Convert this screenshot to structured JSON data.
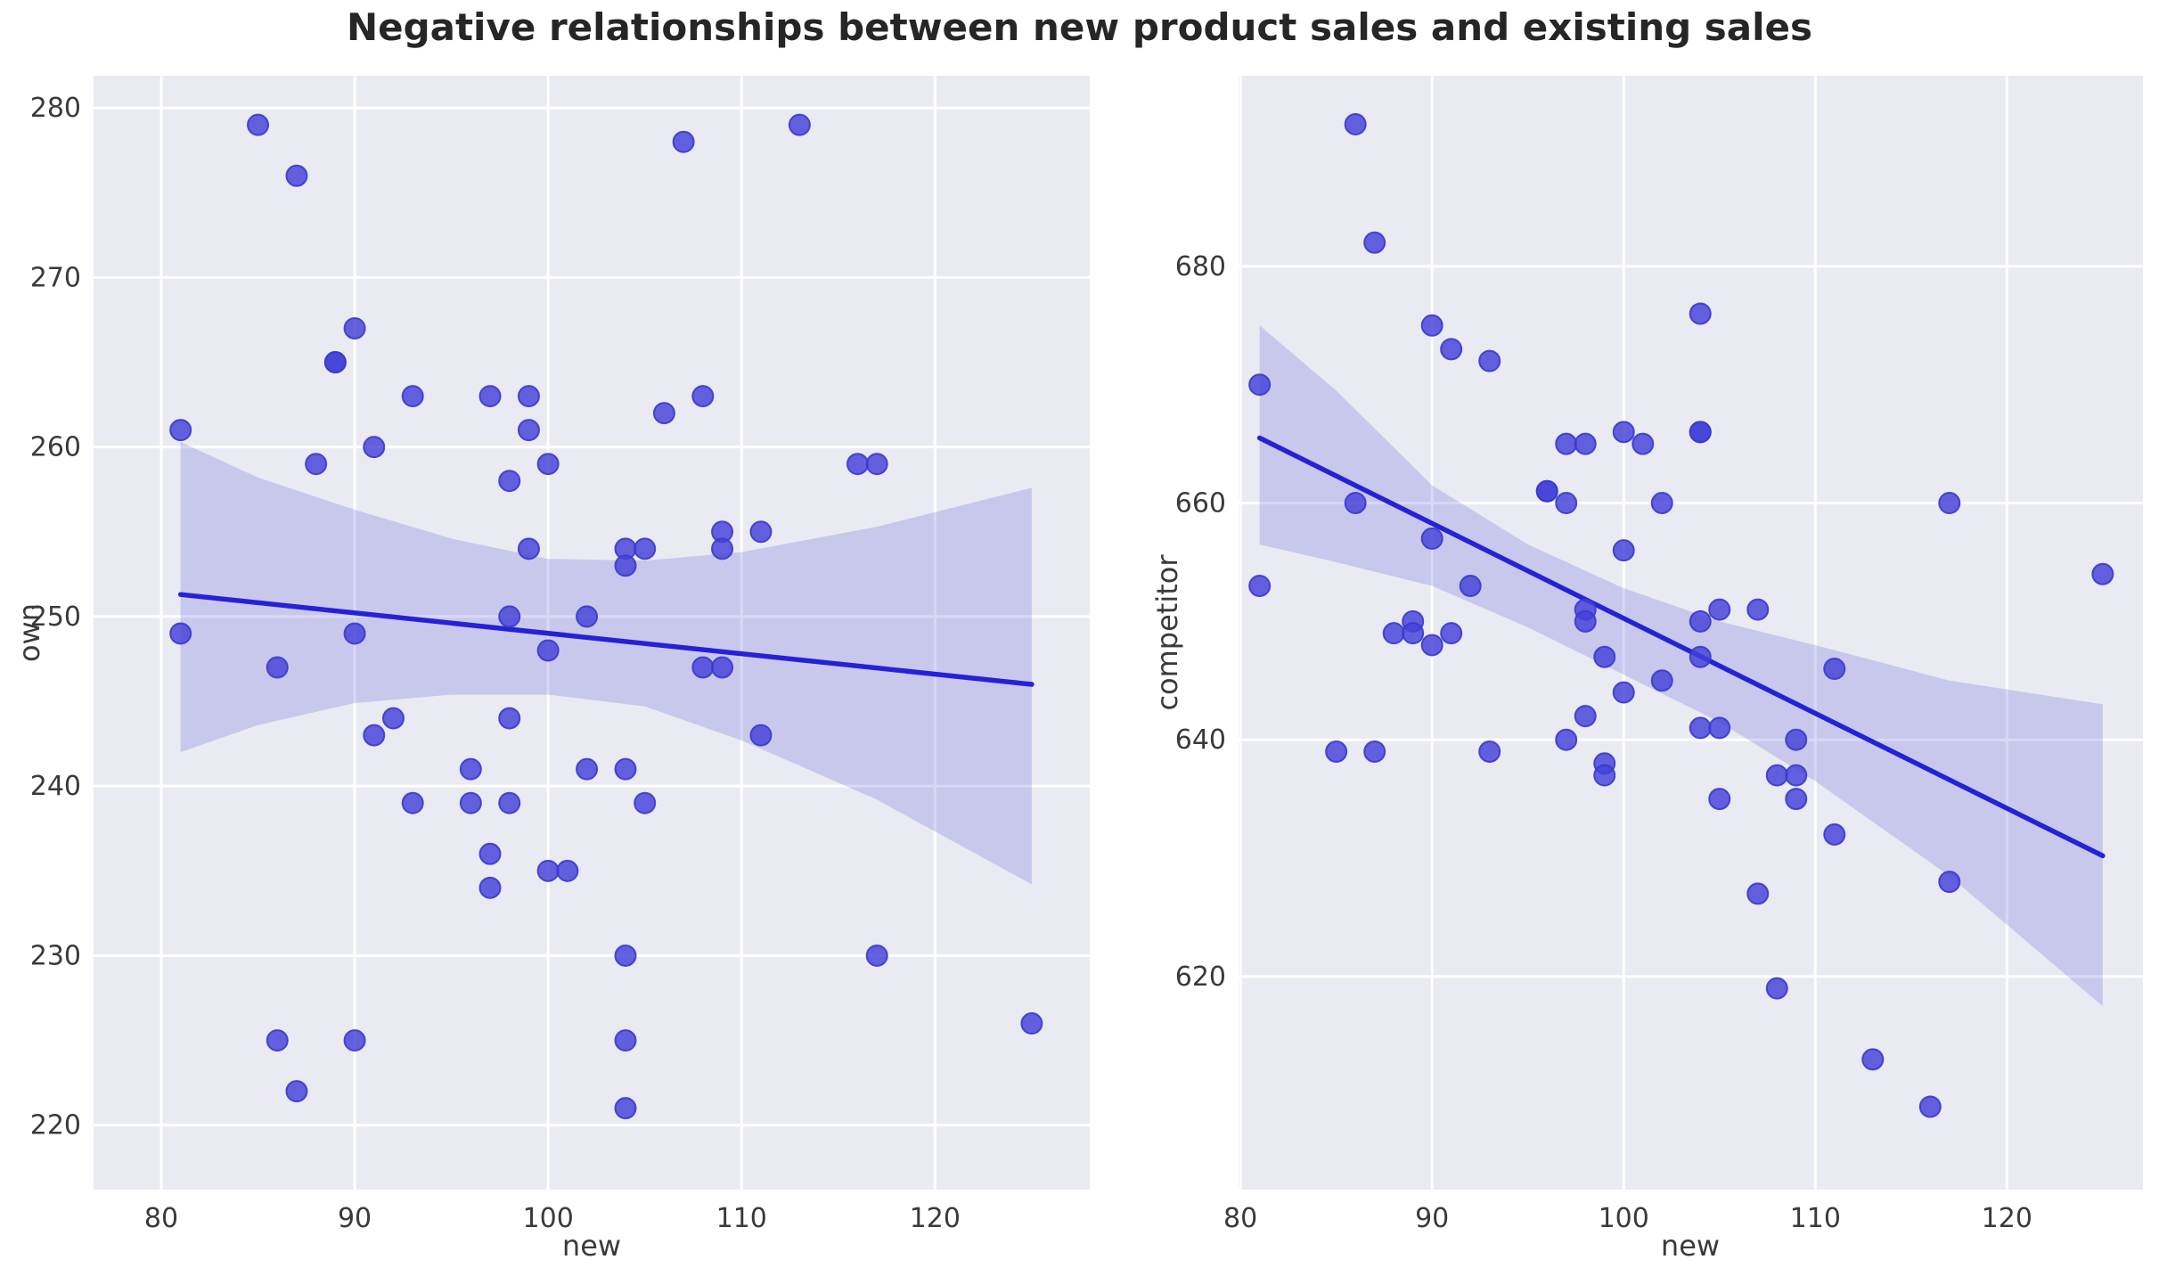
{
  "title": "Negative relationships between new product sales and existing sales",
  "colors": {
    "figure_background": "#ffffff",
    "axes_background": "#eaeaf2",
    "gridline": "#ffffff",
    "point_fill": "#4441d9",
    "point_edge": "#3a38cc",
    "regression_line": "#2522d6",
    "confidence_band": "#5a5ad8",
    "tick_text": "#3a3a3a",
    "title_text": "#262626"
  },
  "chart_data": [
    {
      "type": "scatter",
      "title": "",
      "xlabel": "new",
      "ylabel": "own",
      "xlim": [
        76.5,
        128.0
      ],
      "ylim": [
        216.2,
        281.9
      ],
      "xticks": [
        80,
        90,
        100,
        110,
        120
      ],
      "yticks": [
        220,
        230,
        240,
        250,
        260,
        270,
        280
      ],
      "grid": true,
      "legend": null,
      "points": [
        [
          85,
          279
        ],
        [
          113,
          279
        ],
        [
          107,
          278
        ],
        [
          87,
          276
        ],
        [
          90,
          267
        ],
        [
          89,
          265
        ],
        [
          89,
          265
        ],
        [
          93,
          263
        ],
        [
          97,
          263
        ],
        [
          99,
          263
        ],
        [
          108,
          263
        ],
        [
          106,
          262
        ],
        [
          81,
          261
        ],
        [
          99,
          261
        ],
        [
          91,
          260
        ],
        [
          88,
          259
        ],
        [
          100,
          259
        ],
        [
          116,
          259
        ],
        [
          117,
          259
        ],
        [
          98,
          258
        ],
        [
          109,
          255
        ],
        [
          111,
          255
        ],
        [
          99,
          254
        ],
        [
          104,
          254
        ],
        [
          105,
          254
        ],
        [
          109,
          254
        ],
        [
          104,
          253
        ],
        [
          98,
          250
        ],
        [
          102,
          250
        ],
        [
          81,
          249
        ],
        [
          90,
          249
        ],
        [
          100,
          248
        ],
        [
          86,
          247
        ],
        [
          108,
          247
        ],
        [
          109,
          247
        ],
        [
          92,
          244
        ],
        [
          98,
          244
        ],
        [
          91,
          243
        ],
        [
          111,
          243
        ],
        [
          96,
          241
        ],
        [
          102,
          241
        ],
        [
          104,
          241
        ],
        [
          93,
          239
        ],
        [
          96,
          239
        ],
        [
          98,
          239
        ],
        [
          105,
          239
        ],
        [
          97,
          236
        ],
        [
          100,
          235
        ],
        [
          101,
          235
        ],
        [
          97,
          234
        ],
        [
          104,
          230
        ],
        [
          117,
          230
        ],
        [
          86,
          225
        ],
        [
          90,
          225
        ],
        [
          104,
          225
        ],
        [
          125,
          226
        ],
        [
          87,
          222
        ],
        [
          104,
          221
        ]
      ],
      "regression": {
        "x": [
          81,
          125
        ],
        "y": [
          251.3,
          246.0
        ]
      },
      "confidence_band": {
        "x": [
          81,
          85,
          90,
          95,
          100,
          105,
          110,
          117,
          125
        ],
        "upper": [
          260.3,
          258.2,
          256.3,
          254.6,
          253.4,
          253.3,
          253.8,
          255.3,
          257.6
        ],
        "lower": [
          242.0,
          243.6,
          244.9,
          245.4,
          245.4,
          244.7,
          242.7,
          239.2,
          234.2
        ]
      }
    },
    {
      "type": "scatter",
      "title": "",
      "xlabel": "new",
      "ylabel": "competitor",
      "xlim": [
        79.9,
        127.1
      ],
      "ylim": [
        602.0,
        696.1
      ],
      "xticks": [
        80,
        90,
        100,
        110,
        120
      ],
      "yticks": [
        620,
        640,
        660,
        680
      ],
      "grid": true,
      "legend": null,
      "points": [
        [
          86,
          692
        ],
        [
          87,
          682
        ],
        [
          90,
          675
        ],
        [
          91,
          673
        ],
        [
          93,
          672
        ],
        [
          104,
          676
        ],
        [
          81,
          670
        ],
        [
          104,
          666
        ],
        [
          104,
          666
        ],
        [
          100,
          666
        ],
        [
          97,
          665
        ],
        [
          98,
          665
        ],
        [
          101,
          665
        ],
        [
          96,
          661
        ],
        [
          96,
          661
        ],
        [
          86,
          660
        ],
        [
          97,
          660
        ],
        [
          102,
          660
        ],
        [
          117,
          660
        ],
        [
          90,
          657
        ],
        [
          100,
          656
        ],
        [
          125,
          654
        ],
        [
          81,
          653
        ],
        [
          92,
          653
        ],
        [
          98,
          651
        ],
        [
          105,
          651
        ],
        [
          107,
          651
        ],
        [
          89,
          650
        ],
        [
          98,
          650
        ],
        [
          104,
          650
        ],
        [
          88,
          649
        ],
        [
          89,
          649
        ],
        [
          91,
          649
        ],
        [
          90,
          648
        ],
        [
          99,
          647
        ],
        [
          104,
          647
        ],
        [
          111,
          646
        ],
        [
          102,
          645
        ],
        [
          100,
          644
        ],
        [
          98,
          642
        ],
        [
          104,
          641
        ],
        [
          105,
          641
        ],
        [
          97,
          640
        ],
        [
          109,
          640
        ],
        [
          85,
          639
        ],
        [
          87,
          639
        ],
        [
          93,
          639
        ],
        [
          99,
          638
        ],
        [
          99,
          637
        ],
        [
          108,
          637
        ],
        [
          109,
          637
        ],
        [
          105,
          635
        ],
        [
          109,
          635
        ],
        [
          111,
          632
        ],
        [
          107,
          627
        ],
        [
          117,
          628
        ],
        [
          108,
          619
        ],
        [
          113,
          613
        ],
        [
          116,
          609
        ]
      ],
      "regression": {
        "x": [
          81,
          125
        ],
        "y": [
          665.5,
          630.2
        ]
      },
      "confidence_band": {
        "x": [
          81,
          85,
          90,
          95,
          100,
          105,
          110,
          117,
          125
        ],
        "upper": [
          675.0,
          669.5,
          661.5,
          656.5,
          652.8,
          650.0,
          648.0,
          645.0,
          643.0
        ],
        "lower": [
          656.5,
          655.0,
          653.0,
          649.5,
          645.5,
          641.5,
          636.5,
          628.5,
          617.5
        ]
      }
    }
  ]
}
